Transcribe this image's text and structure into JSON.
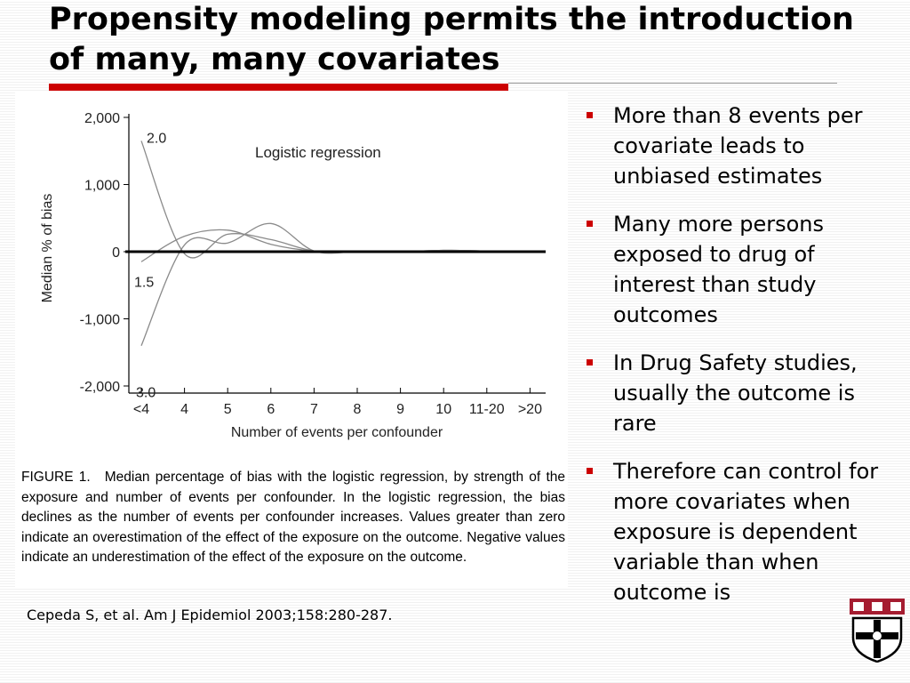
{
  "slide": {
    "title": "Propensity modeling permits the introduction of many, many covariates",
    "citation": "Cepeda S, et al. Am J Epidemiol 2003;158:280-287.",
    "accent_color": "#cc0000"
  },
  "figure": {
    "caption_label": "FIGURE 1.",
    "caption_text": "Median percentage of bias with the logistic regression, by strength of the exposure and number of events per confounder. In the logistic regression, the bias declines as the number of events per confounder increases. Values greater than zero indicate an overestimation of the effect of the exposure on the outcome. Negative values indicate an underestimation of the effect of the exposure on the outcome."
  },
  "bullets": [
    "More than 8 events per covariate leads to unbiased estimates",
    "Many more persons exposed to drug of interest than study outcomes",
    "In Drug Safety studies, usually the outcome is rare",
    "Therefore can control for more covariates when exposure is dependent variable than when outcome is"
  ],
  "chart_data": {
    "type": "line",
    "title": "Logistic regression",
    "xlabel": "Number of events per confounder",
    "ylabel": "Median % of bias",
    "categories": [
      "<4",
      "4",
      "5",
      "6",
      "7",
      "8",
      "9",
      "10",
      "11-20",
      ">20"
    ],
    "ylim": [
      -2000,
      2000
    ],
    "yticks": [
      2000,
      1000,
      0,
      -1000,
      -2000
    ],
    "ytick_labels": [
      "2,000",
      "1,000",
      "0",
      "-1,000",
      "-2,000"
    ],
    "grid": false,
    "series": [
      {
        "name": "2.0",
        "values": [
          1650,
          -30,
          260,
          180,
          10,
          0,
          0,
          20,
          10,
          0
        ]
      },
      {
        "name": "1.5",
        "values": [
          -150,
          230,
          320,
          110,
          10,
          0,
          0,
          20,
          10,
          0
        ]
      },
      {
        "name": "3.0",
        "values": [
          -1400,
          100,
          130,
          420,
          10,
          0,
          0,
          20,
          10,
          0
        ]
      }
    ],
    "reference_line": 0
  }
}
